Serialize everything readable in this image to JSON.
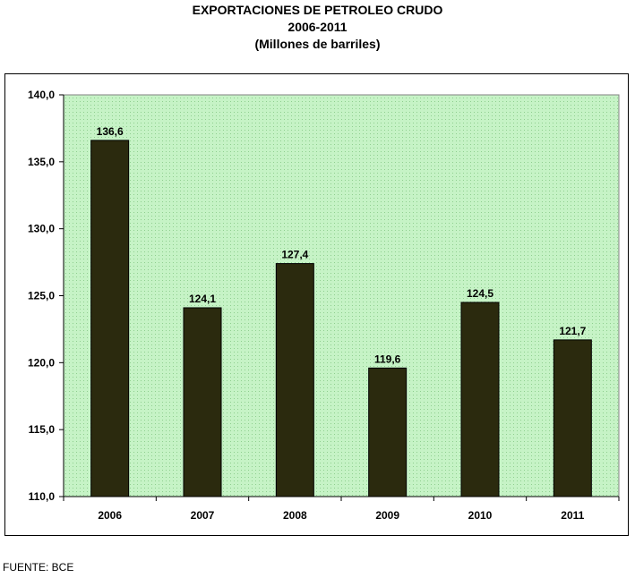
{
  "header": {
    "title": "EXPORTACIONES DE PETROLEO CRUDO",
    "subtitle": "2006-2011",
    "unit": "(Millones de barriles)"
  },
  "footer": {
    "source": "FUENTE: BCE"
  },
  "colors": {
    "plot_bg": "#c6f3c6",
    "bar": "#2b2a0e",
    "axis": "#000000"
  },
  "chart_data": {
    "type": "bar",
    "categories": [
      "2006",
      "2007",
      "2008",
      "2009",
      "2010",
      "2011"
    ],
    "values": [
      136.6,
      124.1,
      127.4,
      119.6,
      124.5,
      121.7
    ],
    "data_labels": [
      "136,6",
      "124,1",
      "127,4",
      "119,6",
      "124,5",
      "121,7"
    ],
    "ylim": [
      110,
      140
    ],
    "yticks": [
      110,
      115,
      120,
      125,
      130,
      135,
      140
    ],
    "ytick_labels": [
      "110,0",
      "115,0",
      "120,0",
      "125,0",
      "130,0",
      "135,0",
      "140,0"
    ],
    "grid": false,
    "legend": "none"
  }
}
